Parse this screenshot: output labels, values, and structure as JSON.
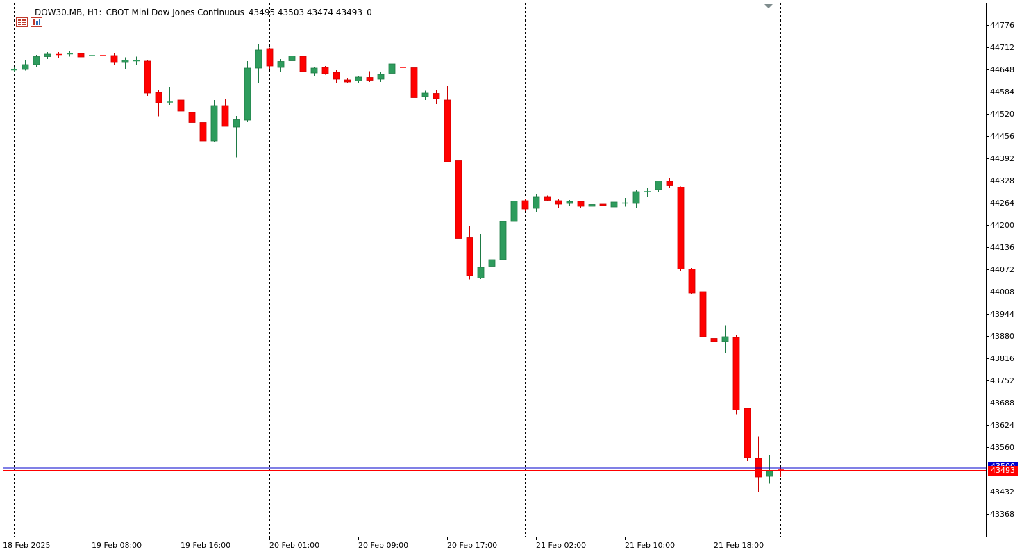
{
  "header": {
    "symbol_timeframe": "DOW30.MB, H1:",
    "description": "CBOT Mini Dow Jones Continuous",
    "ohlc": "43495 43503 43474 43493",
    "volume": "0",
    "icons": [
      "chart-properties-icon",
      "instrument-icon"
    ]
  },
  "colors": {
    "bull": "#2e9c5d",
    "bear": "#ff0000",
    "grid": "#000000",
    "bid_line": "#ff0000",
    "ask_line": "#0000cc",
    "bid_label_bg": "#ff0000",
    "ask_label_bg": "#0000cc"
  },
  "price_axis": {
    "ticks": [
      "44776",
      "44712",
      "44648",
      "44584",
      "44520",
      "44456",
      "44392",
      "44328",
      "44264",
      "44200",
      "44136",
      "44072",
      "44008",
      "43944",
      "43880",
      "43816",
      "43752",
      "43688",
      "43624",
      "43560",
      "43432",
      "43368"
    ],
    "current_bid": "43493",
    "ask_label": "43500"
  },
  "time_axis": {
    "labels": [
      "18 Feb 2025",
      "19 Feb 08:00",
      "19 Feb 16:00",
      "20 Feb 01:00",
      "20 Feb 09:00",
      "20 Feb 17:00",
      "21 Feb 02:00",
      "21 Feb 10:00",
      "21 Feb 18:00"
    ]
  },
  "chart_data": {
    "type": "candlestick",
    "title": "DOW30.MB, H1: CBOT Mini Dow Jones Continuous",
    "ylim": [
      43320,
      44800
    ],
    "candles": [
      [
        44648,
        44655,
        44642,
        44648
      ],
      [
        44648,
        44675,
        44645,
        44662
      ],
      [
        44662,
        44690,
        44655,
        44685
      ],
      [
        44685,
        44698,
        44678,
        44692
      ],
      [
        44692,
        44698,
        44682,
        44689
      ],
      [
        44691,
        44701,
        44685,
        44694
      ],
      [
        44694,
        44699,
        44675,
        44684
      ],
      [
        44688,
        44695,
        44682,
        44689
      ],
      [
        44689,
        44700,
        44682,
        44686
      ],
      [
        44688,
        44695,
        44661,
        44668
      ],
      [
        44668,
        44683,
        44650,
        44675
      ],
      [
        44673,
        44685,
        44662,
        44674
      ],
      [
        44672,
        44674,
        44572,
        44580
      ],
      [
        44582,
        44590,
        44513,
        44552
      ],
      [
        44552,
        44598,
        44546,
        44555
      ],
      [
        44560,
        44590,
        44518,
        44528
      ],
      [
        44524,
        44540,
        44430,
        44495
      ],
      [
        44495,
        44530,
        44430,
        44442
      ],
      [
        44442,
        44560,
        44438,
        44544
      ],
      [
        44544,
        44562,
        44486,
        44484
      ],
      [
        44482,
        44514,
        44395,
        44503
      ],
      [
        44502,
        44672,
        44498,
        44652
      ],
      [
        44652,
        44720,
        44608,
        44704
      ],
      [
        44708,
        44711,
        44650,
        44658
      ],
      [
        44654,
        44678,
        44642,
        44671
      ],
      [
        44673,
        44691,
        44656,
        44687
      ],
      [
        44686,
        44688,
        44632,
        44642
      ],
      [
        44638,
        44656,
        44630,
        44652
      ],
      [
        44654,
        44658,
        44633,
        44636
      ],
      [
        44640,
        44646,
        44609,
        44620
      ],
      [
        44618,
        44622,
        44608,
        44612
      ],
      [
        44615,
        44628,
        44610,
        44626
      ],
      [
        44625,
        44643,
        44612,
        44617
      ],
      [
        44620,
        44640,
        44612,
        44634
      ],
      [
        44637,
        44668,
        44636,
        44664
      ],
      [
        44655,
        44676,
        44646,
        44653
      ],
      [
        44653,
        44660,
        44570,
        44567
      ],
      [
        44570,
        44587,
        44560,
        44580
      ],
      [
        44579,
        44590,
        44548,
        44564
      ],
      [
        44560,
        44600,
        44380,
        44382
      ],
      [
        44385,
        44385,
        44170,
        44161
      ],
      [
        44163,
        44197,
        44043,
        44054
      ],
      [
        44047,
        44174,
        44044,
        44078
      ],
      [
        44081,
        44090,
        44030,
        44100
      ],
      [
        44100,
        44215,
        44098,
        44210
      ],
      [
        44210,
        44280,
        44185,
        44269
      ],
      [
        44270,
        44275,
        44240,
        44246
      ],
      [
        44248,
        44290,
        44236,
        44280
      ],
      [
        44280,
        44285,
        44268,
        44271
      ],
      [
        44270,
        44276,
        44248,
        44260
      ],
      [
        44262,
        44272,
        44254,
        44268
      ],
      [
        44268,
        44270,
        44248,
        44254
      ],
      [
        44254,
        44264,
        44250,
        44259
      ],
      [
        44260,
        44264,
        44248,
        44256
      ],
      [
        44252,
        44270,
        44250,
        44266
      ],
      [
        44261,
        44278,
        44253,
        44264
      ],
      [
        44262,
        44302,
        44250,
        44296
      ],
      [
        44294,
        44306,
        44280,
        44297
      ],
      [
        44302,
        44328,
        44296,
        44327
      ],
      [
        44326,
        44334,
        44306,
        44313
      ],
      [
        44309,
        44311,
        44068,
        44073
      ],
      [
        44073,
        44076,
        44000,
        44004
      ],
      [
        44008,
        44010,
        43847,
        43878
      ],
      [
        43873,
        43897,
        43825,
        43864
      ],
      [
        43864,
        43911,
        43832,
        43878
      ],
      [
        43876,
        43883,
        43655,
        43667
      ],
      [
        43672,
        43672,
        43520,
        43530
      ],
      [
        43528,
        43591,
        43432,
        43474
      ],
      [
        43476,
        43538,
        43455,
        43493
      ],
      [
        43495,
        43503,
        43474,
        43493
      ]
    ]
  }
}
